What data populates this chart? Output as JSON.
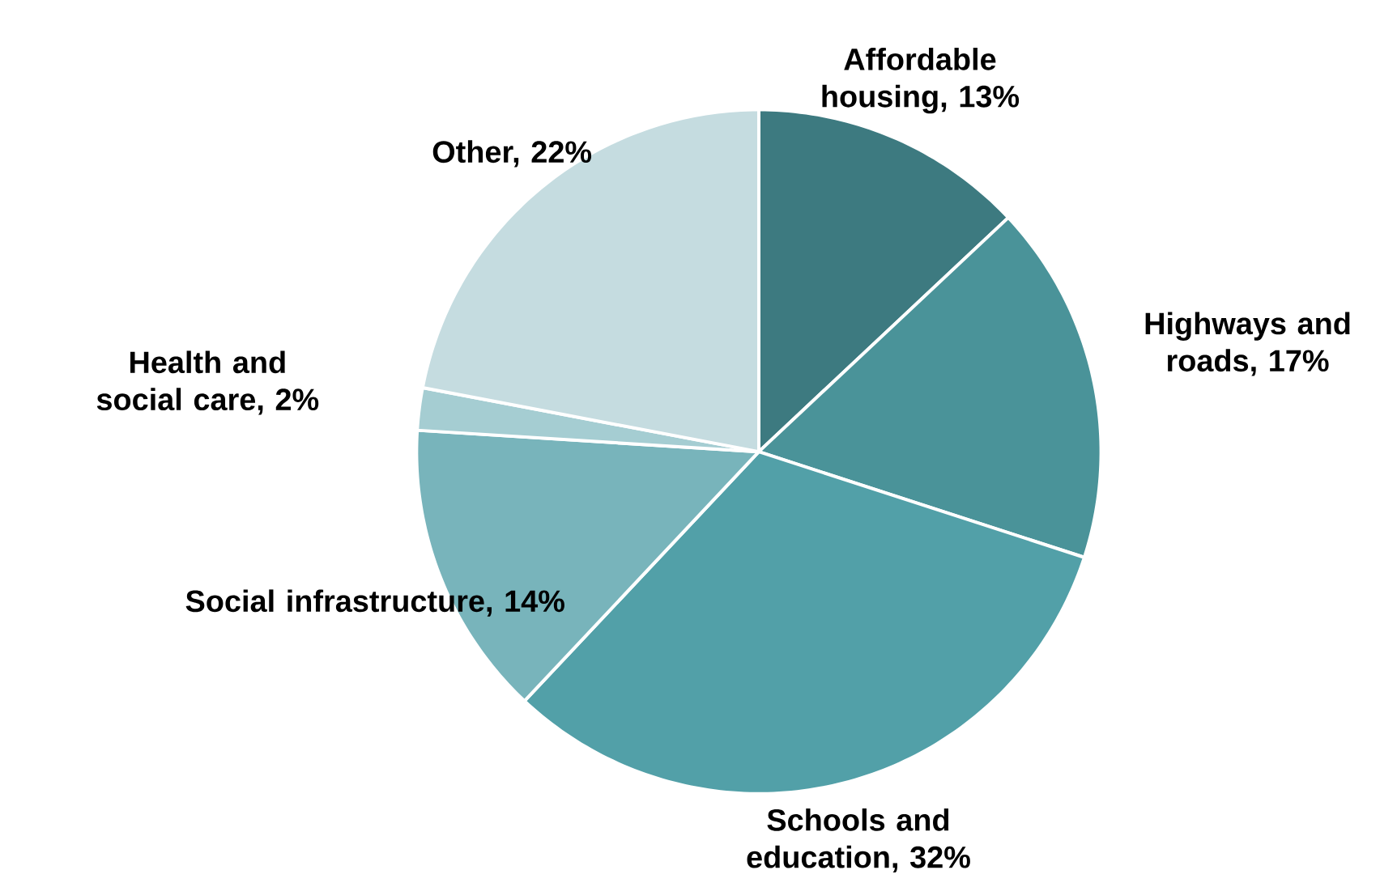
{
  "chart_data": {
    "type": "pie",
    "categories": [
      "Affordable housing, 13%",
      "Highways and roads, 17%",
      "Schools and education, 32%",
      "Social infrastructure, 14%",
      "Health and social care, 2%",
      "Other, 22%"
    ],
    "values": [
      13,
      17,
      32,
      14,
      2,
      22
    ],
    "colors": [
      "#3d7a80",
      "#4a9399",
      "#52a0a8",
      "#78b4bb",
      "#a5cdd2",
      "#c5dce0"
    ]
  }
}
